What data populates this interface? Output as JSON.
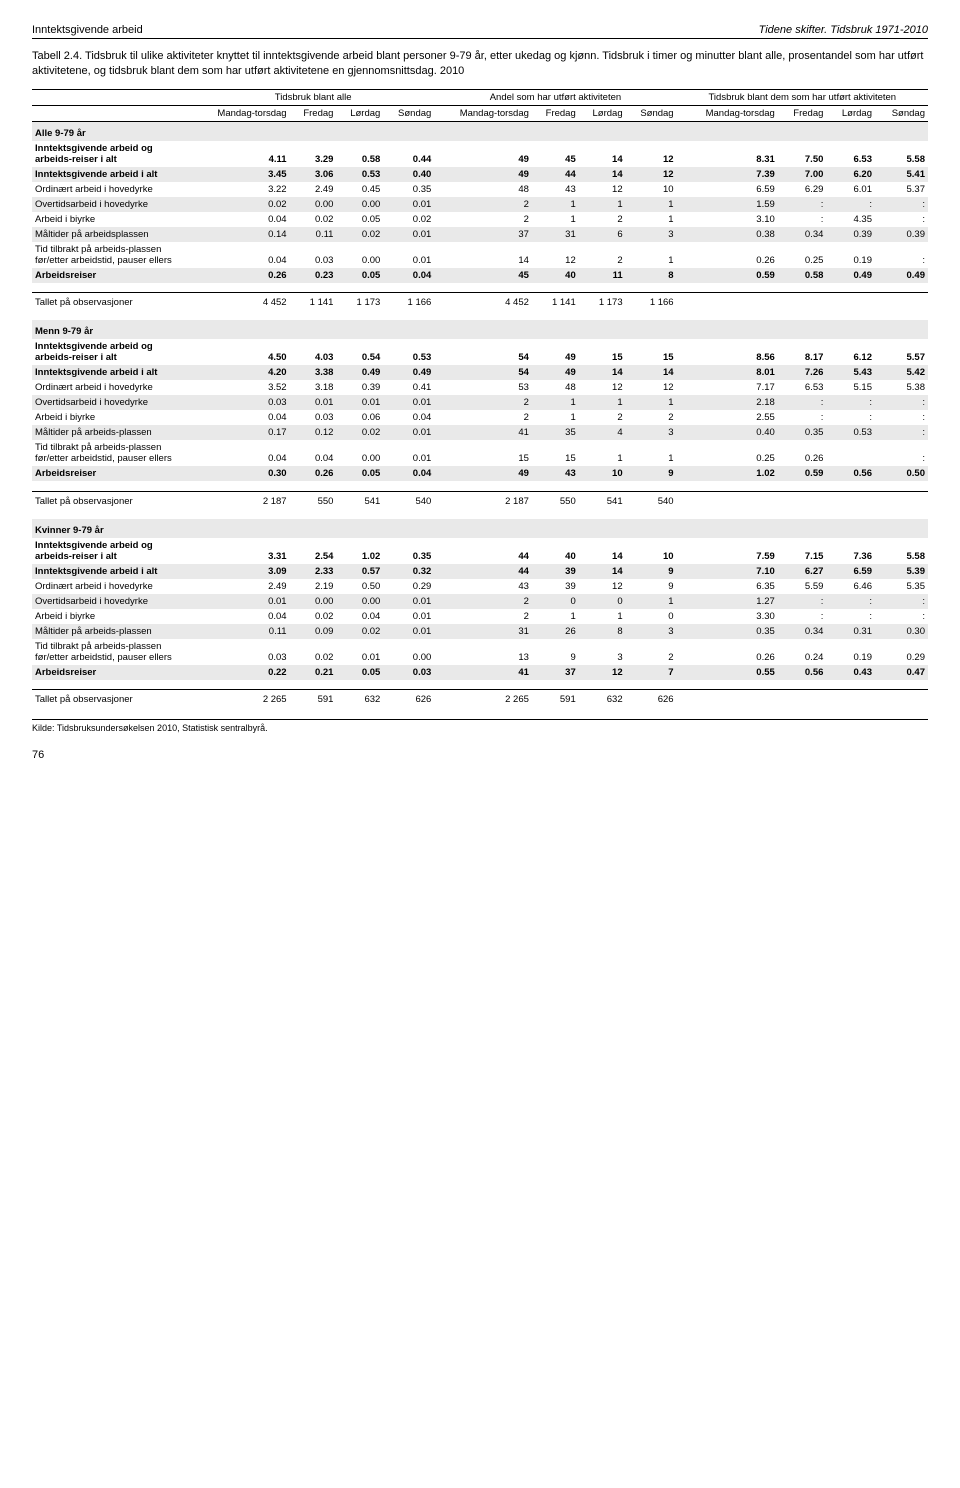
{
  "header": {
    "left": "Inntektsgivende arbeid",
    "right": "Tidene skifter. Tidsbruk 1971-2010"
  },
  "caption": "Tabell 2.4. Tidsbruk til ulike aktiviteter knyttet til inntektsgivende arbeid blant personer 9-79 år, etter ukedag og kjønn. Tidsbruk i timer og minutter blant alle, prosentandel som har utført aktivitetene, og tidsbruk blant dem som har utført aktivitetene en gjennomsnittsdag. 2010",
  "group_headers": [
    "Tidsbruk blant alle",
    "Andel som har utført aktiviteten",
    "Tidsbruk blant dem som har utført aktiviteten"
  ],
  "col_headers": [
    "Mandag-torsdag",
    "Fredag",
    "Lørdag",
    "Søndag",
    "Mandag-torsdag",
    "Fredag",
    "Lørdag",
    "Søndag",
    "Mandag-torsdag",
    "Fredag",
    "Lørdag",
    "Søndag"
  ],
  "sections": [
    {
      "title": "Alle 9-79 år",
      "rows": [
        {
          "label": "Inntektsgivende arbeid og arbeids-reiser i alt",
          "bold": true,
          "v": [
            "4.11",
            "3.29",
            "0.58",
            "0.44",
            "49",
            "45",
            "14",
            "12",
            "8.31",
            "7.50",
            "6.53",
            "5.58"
          ]
        },
        {
          "label": "Inntektsgivende arbeid i alt",
          "bold": true,
          "band": true,
          "v": [
            "3.45",
            "3.06",
            "0.53",
            "0.40",
            "49",
            "44",
            "14",
            "12",
            "7.39",
            "7.00",
            "6.20",
            "5.41"
          ]
        },
        {
          "label": "Ordinært arbeid i hovedyrke",
          "v": [
            "3.22",
            "2.49",
            "0.45",
            "0.35",
            "48",
            "43",
            "12",
            "10",
            "6.59",
            "6.29",
            "6.01",
            "5.37"
          ]
        },
        {
          "label": "Overtidsarbeid i hovedyrke",
          "band": true,
          "v": [
            "0.02",
            "0.00",
            "0.00",
            "0.01",
            "2",
            "1",
            "1",
            "1",
            "1.59",
            ":",
            ":",
            ":"
          ]
        },
        {
          "label": "Arbeid i biyrke",
          "v": [
            "0.04",
            "0.02",
            "0.05",
            "0.02",
            "2",
            "1",
            "2",
            "1",
            "3.10",
            ":",
            "4.35",
            ":"
          ]
        },
        {
          "label": "Måltider på arbeidsplassen",
          "band": true,
          "v": [
            "0.14",
            "0.11",
            "0.02",
            "0.01",
            "37",
            "31",
            "6",
            "3",
            "0.38",
            "0.34",
            "0.39",
            "0.39"
          ]
        },
        {
          "label": "Tid tilbrakt på arbeids-plassen før/etter arbeidstid, pauser ellers",
          "v": [
            "0.04",
            "0.03",
            "0.00",
            "0.01",
            "14",
            "12",
            "2",
            "1",
            "0.26",
            "0.25",
            "0.19",
            ":"
          ]
        },
        {
          "label": "Arbeidsreiser",
          "bold": true,
          "band": true,
          "v": [
            "0.26",
            "0.23",
            "0.05",
            "0.04",
            "45",
            "40",
            "11",
            "8",
            "0.59",
            "0.58",
            "0.49",
            "0.49"
          ]
        }
      ],
      "obs": {
        "label": "Tallet på observasjoner",
        "v": [
          "4 452",
          "1 141",
          "1 173",
          "1 166",
          "4 452",
          "1 141",
          "1 173",
          "1 166",
          "",
          "",
          "",
          ""
        ]
      }
    },
    {
      "title": "Menn 9-79 år",
      "rows": [
        {
          "label": "Inntektsgivende arbeid og arbeids-reiser i alt",
          "bold": true,
          "v": [
            "4.50",
            "4.03",
            "0.54",
            "0.53",
            "54",
            "49",
            "15",
            "15",
            "8.56",
            "8.17",
            "6.12",
            "5.57"
          ]
        },
        {
          "label": "Inntektsgivende arbeid i alt",
          "bold": true,
          "band": true,
          "v": [
            "4.20",
            "3.38",
            "0.49",
            "0.49",
            "54",
            "49",
            "14",
            "14",
            "8.01",
            "7.26",
            "5.43",
            "5.42"
          ]
        },
        {
          "label": "Ordinært arbeid i hovedyrke",
          "v": [
            "3.52",
            "3.18",
            "0.39",
            "0.41",
            "53",
            "48",
            "12",
            "12",
            "7.17",
            "6.53",
            "5.15",
            "5.38"
          ]
        },
        {
          "label": "Overtidsarbeid i hovedyrke",
          "band": true,
          "v": [
            "0.03",
            "0.01",
            "0.01",
            "0.01",
            "2",
            "1",
            "1",
            "1",
            "2.18",
            ":",
            ":",
            ":"
          ]
        },
        {
          "label": "Arbeid i biyrke",
          "v": [
            "0.04",
            "0.03",
            "0.06",
            "0.04",
            "2",
            "1",
            "2",
            "2",
            "2.55",
            ":",
            ":",
            ":"
          ]
        },
        {
          "label": "Måltider på arbeids-plassen",
          "band": true,
          "v": [
            "0.17",
            "0.12",
            "0.02",
            "0.01",
            "41",
            "35",
            "4",
            "3",
            "0.40",
            "0.35",
            "0.53",
            ":"
          ]
        },
        {
          "label": "Tid tilbrakt på arbeids-plassen før/etter arbeidstid, pauser ellers",
          "v": [
            "0.04",
            "0.04",
            "0.00",
            "0.01",
            "15",
            "15",
            "1",
            "1",
            "0.25",
            "0.26",
            "",
            ":"
          ]
        },
        {
          "label": "Arbeidsreiser",
          "bold": true,
          "band": true,
          "v": [
            "0.30",
            "0.26",
            "0.05",
            "0.04",
            "49",
            "43",
            "10",
            "9",
            "1.02",
            "0.59",
            "0.56",
            "0.50"
          ]
        }
      ],
      "obs": {
        "label": "Tallet på observasjoner",
        "v": [
          "2 187",
          "550",
          "541",
          "540",
          "2 187",
          "550",
          "541",
          "540",
          "",
          "",
          "",
          ""
        ]
      }
    },
    {
      "title": "Kvinner 9-79 år",
      "rows": [
        {
          "label": "Inntektsgivende arbeid og arbeids-reiser i alt",
          "bold": true,
          "v": [
            "3.31",
            "2.54",
            "1.02",
            "0.35",
            "44",
            "40",
            "14",
            "10",
            "7.59",
            "7.15",
            "7.36",
            "5.58"
          ]
        },
        {
          "label": "Inntektsgivende arbeid i alt",
          "bold": true,
          "band": true,
          "v": [
            "3.09",
            "2.33",
            "0.57",
            "0.32",
            "44",
            "39",
            "14",
            "9",
            "7.10",
            "6.27",
            "6.59",
            "5.39"
          ]
        },
        {
          "label": "Ordinært arbeid i hovedyrke",
          "v": [
            "2.49",
            "2.19",
            "0.50",
            "0.29",
            "43",
            "39",
            "12",
            "9",
            "6.35",
            "5.59",
            "6.46",
            "5.35"
          ]
        },
        {
          "label": "Overtidsarbeid i hovedyrke",
          "band": true,
          "v": [
            "0.01",
            "0.00",
            "0.00",
            "0.01",
            "2",
            "0",
            "0",
            "1",
            "1.27",
            ":",
            ":",
            ":"
          ]
        },
        {
          "label": "Arbeid i biyrke",
          "v": [
            "0.04",
            "0.02",
            "0.04",
            "0.01",
            "2",
            "1",
            "1",
            "0",
            "3.30",
            ":",
            ":",
            ":"
          ]
        },
        {
          "label": "Måltider på arbeids-plassen",
          "band": true,
          "v": [
            "0.11",
            "0.09",
            "0.02",
            "0.01",
            "31",
            "26",
            "8",
            "3",
            "0.35",
            "0.34",
            "0.31",
            "0.30"
          ]
        },
        {
          "label": "Tid tilbrakt på arbeids-plassen før/etter arbeidstid, pauser ellers",
          "v": [
            "0.03",
            "0.02",
            "0.01",
            "0.00",
            "13",
            "9",
            "3",
            "2",
            "0.26",
            "0.24",
            "0.19",
            "0.29"
          ]
        },
        {
          "label": "Arbeidsreiser",
          "bold": true,
          "band": true,
          "v": [
            "0.22",
            "0.21",
            "0.05",
            "0.03",
            "41",
            "37",
            "12",
            "7",
            "0.55",
            "0.56",
            "0.43",
            "0.47"
          ]
        }
      ],
      "obs": {
        "label": "Tallet på observasjoner",
        "v": [
          "2 265",
          "591",
          "632",
          "626",
          "2 265",
          "591",
          "632",
          "626",
          "",
          "",
          "",
          ""
        ]
      }
    }
  ],
  "source": "Kilde: Tidsbruksundersøkelsen 2010, Statistisk sentralbyrå.",
  "page": "76"
}
